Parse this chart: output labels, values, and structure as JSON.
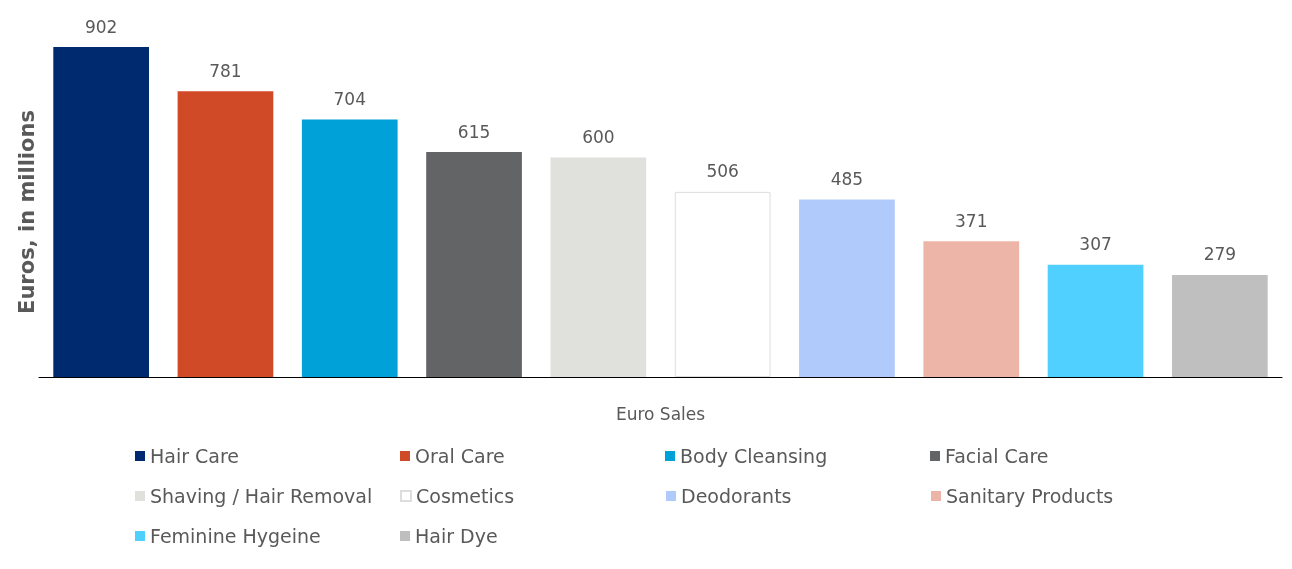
{
  "chart_data": {
    "type": "bar",
    "ylabel": "Euros, in millions",
    "xlabel": "Euro Sales",
    "categories": [
      null,
      null,
      null,
      null,
      null,
      null,
      null,
      null,
      null,
      null
    ],
    "stacked": true,
    "series": [
      {
        "name": "Hair Care",
        "color": "#002a6f",
        "values": [
          902,
          null,
          null,
          null,
          null,
          null,
          null,
          null,
          null,
          null
        ]
      },
      {
        "name": "Oral Care",
        "color": "#d04a27",
        "values": [
          null,
          781,
          null,
          null,
          null,
          null,
          null,
          null,
          null,
          null
        ]
      },
      {
        "name": "Body Cleansing",
        "color": "#00a0d8",
        "values": [
          null,
          null,
          704,
          null,
          null,
          null,
          null,
          null,
          null,
          null
        ]
      },
      {
        "name": "Facial Care",
        "color": "#636466",
        "values": [
          null,
          null,
          null,
          615,
          null,
          null,
          null,
          null,
          null,
          null
        ]
      },
      {
        "name": "Shaving / Hair Removal",
        "color": "#e0e0dc",
        "values": [
          null,
          null,
          null,
          null,
          600,
          null,
          null,
          null,
          null,
          null
        ]
      },
      {
        "name": "Cosmetics",
        "color": "#ffffff",
        "values": [
          null,
          null,
          null,
          null,
          null,
          506,
          null,
          null,
          null,
          null
        ]
      },
      {
        "name": "Deodorants",
        "color": "#b0cbfb",
        "values": [
          null,
          null,
          null,
          null,
          null,
          null,
          485,
          null,
          null,
          null
        ]
      },
      {
        "name": "Sanitary Products",
        "color": "#edb5a8",
        "values": [
          null,
          null,
          null,
          null,
          null,
          null,
          null,
          371,
          null,
          null
        ]
      },
      {
        "name": "Feminine Hygeine",
        "color": "#4fd0ff",
        "values": [
          null,
          null,
          null,
          null,
          null,
          null,
          null,
          null,
          307,
          null
        ]
      },
      {
        "name": "Hair Dye",
        "color": "#bfbfbf",
        "values": [
          null,
          null,
          null,
          null,
          null,
          null,
          null,
          null,
          null,
          279
        ]
      }
    ],
    "data_labels": true,
    "legend": "bottom"
  }
}
